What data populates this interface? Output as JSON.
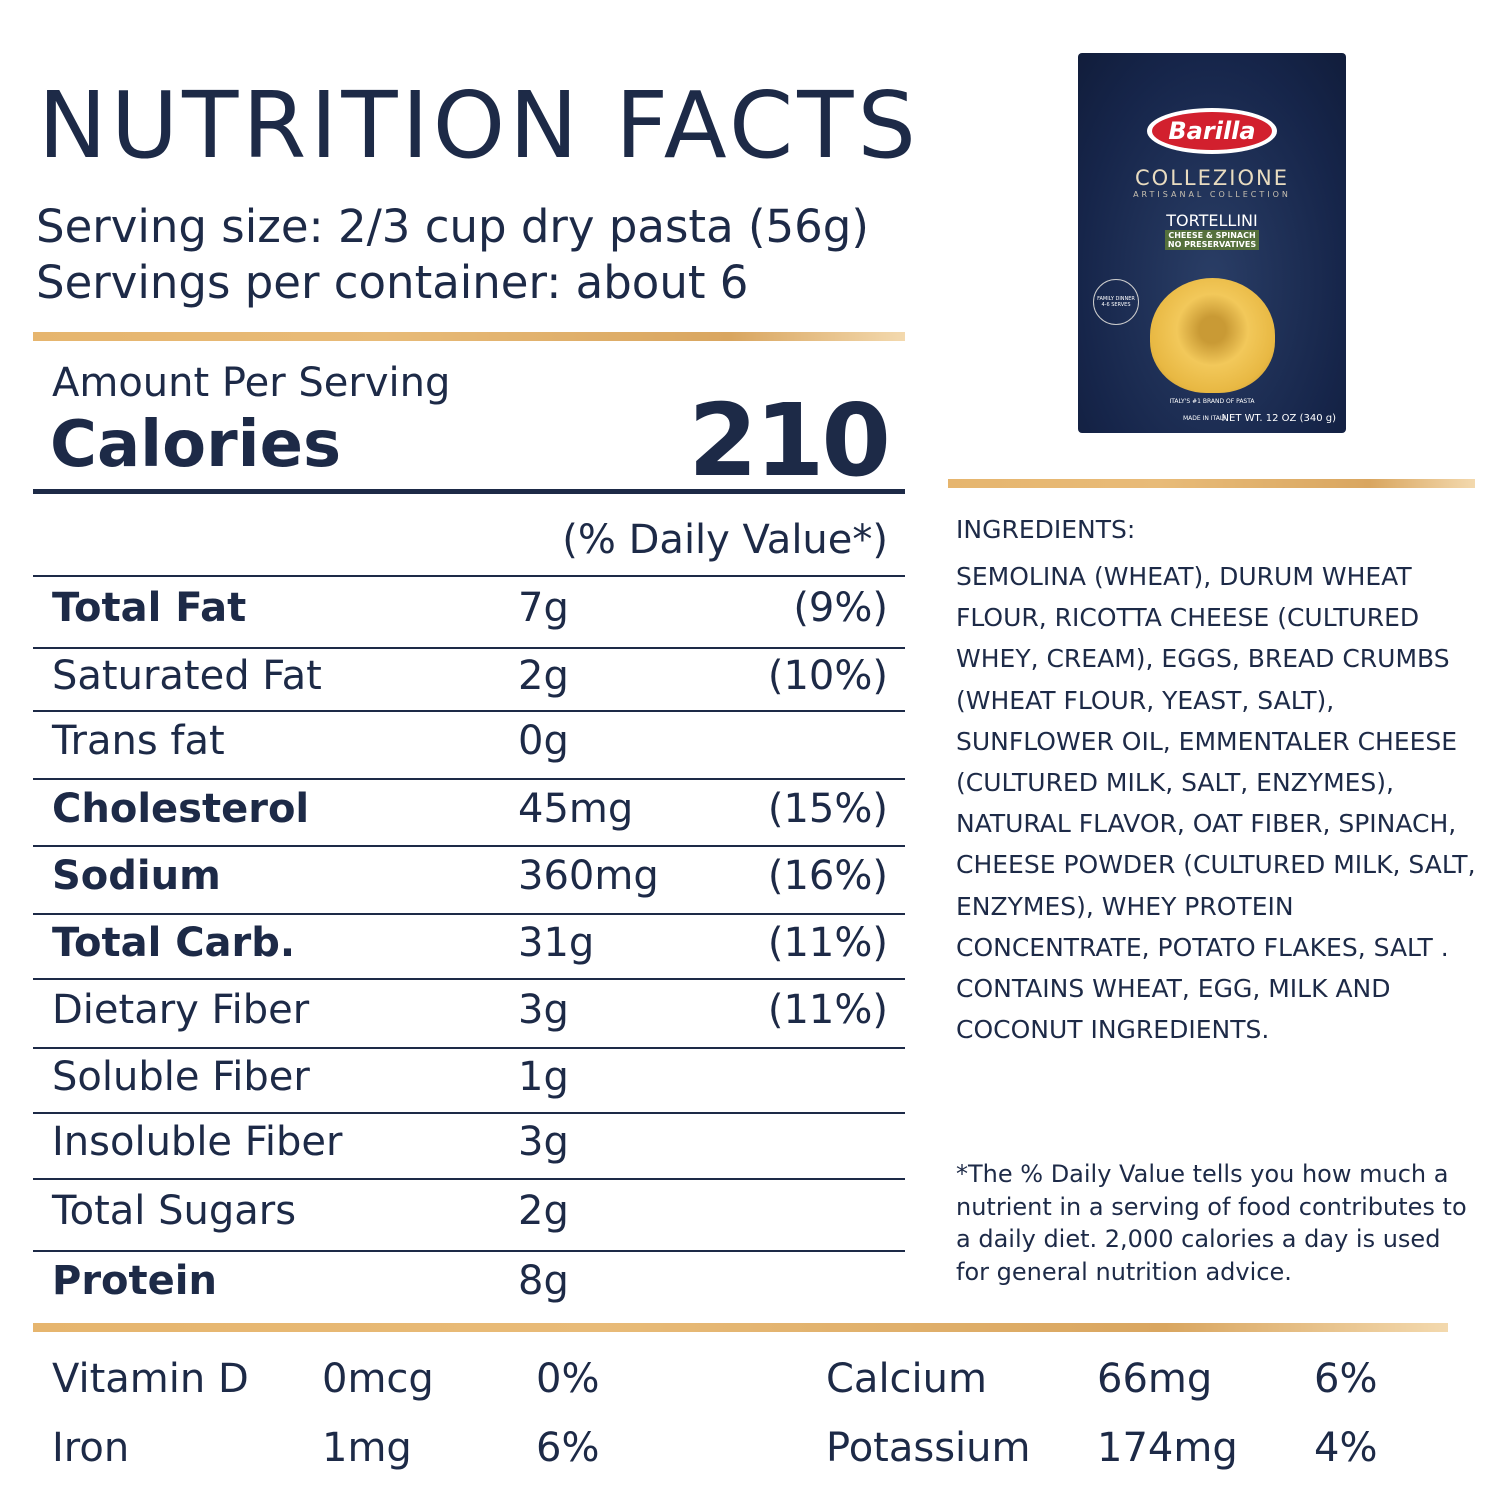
{
  "title": "NUTRITION FACTS",
  "serving_size": "Serving size: 2/3 cup dry pasta (56g)",
  "servings_per_container": "Servings per container: about 6",
  "amount_per_serving": "Amount Per Serving",
  "calories_label": "Calories",
  "calories_value": "210",
  "dv_header": "(% Daily Value*)",
  "rows": [
    {
      "label": "Total Fat",
      "amount": "7g",
      "dv": "(9%)",
      "bold": true
    },
    {
      "label": "Saturated Fat",
      "amount": "2g",
      "dv": "(10%)",
      "bold": false
    },
    {
      "label": "Trans fat",
      "amount": "0g",
      "dv": "",
      "bold": false
    },
    {
      "label": "Cholesterol",
      "amount": "45mg",
      "dv": "(15%)",
      "bold": true
    },
    {
      "label": "Sodium",
      "amount": "360mg",
      "dv": "(16%)",
      "bold": true
    },
    {
      "label": "Total Carb.",
      "amount": "31g",
      "dv": "(11%)",
      "bold": true
    },
    {
      "label": "Dietary Fiber",
      "amount": "3g",
      "dv": "(11%)",
      "bold": false
    },
    {
      "label": "Soluble Fiber",
      "amount": "1g",
      "dv": "",
      "bold": false
    },
    {
      "label": "Insoluble Fiber",
      "amount": "3g",
      "dv": "",
      "bold": false
    },
    {
      "label": "Total Sugars",
      "amount": "2g",
      "dv": "",
      "bold": false
    },
    {
      "label": "Protein",
      "amount": "8g",
      "dv": "",
      "bold": true
    }
  ],
  "minerals": [
    {
      "label": "Vitamin D",
      "amount": "0mcg",
      "dv": "0%"
    },
    {
      "label": "Iron",
      "amount": "1mg",
      "dv": "6%"
    },
    {
      "label": "Calcium",
      "amount": "66mg",
      "dv": "6%"
    },
    {
      "label": "Potassium",
      "amount": "174mg",
      "dv": "4%"
    }
  ],
  "ingredients_heading": "INGREDIENTS:",
  "ingredients_text": "SEMOLINA (WHEAT), DURUM WHEAT FLOUR, RICOTTA CHEESE (CULTURED WHEY, CREAM), EGGS, BREAD CRUMBS (WHEAT FLOUR, YEAST, SALT), SUNFLOWER OIL, EMMENTALER CHEESE (CULTURED MILK, SALT, ENZYMES), NATURAL FLAVOR, OAT FIBER,  SPINACH, CHEESE POWDER (CULTURED MILK, SALT, ENZYMES), WHEY PROTEIN CONCENTRATE, POTATO FLAKES, SALT . CONTAINS WHEAT, EGG, MILK AND COCONUT INGREDIENTS.",
  "footnote": "*The % Daily Value tells you how much a nutrient in a serving of  food contributes to a daily diet. 2,000 calories a day is used for general nutrition advice.",
  "package": {
    "brand": "Barilla",
    "line": "COLLEZIONE",
    "subline": "ARTISANAL COLLECTION",
    "product": "TORTELLINI",
    "flavor": "CHEESE & SPINACH",
    "claim": "NO PRESERVATIVES",
    "badge": "FAMILY DINNER 4-6 SERVES",
    "tagline": "ITALY'S #1 BRAND OF PASTA",
    "origin": "MADE IN ITALY",
    "net_wt": "NET WT. 12 OZ (340 g)"
  },
  "colors": {
    "text": "#1d2a47",
    "accent": "#e6b56e",
    "brand_red": "#d2202e"
  }
}
